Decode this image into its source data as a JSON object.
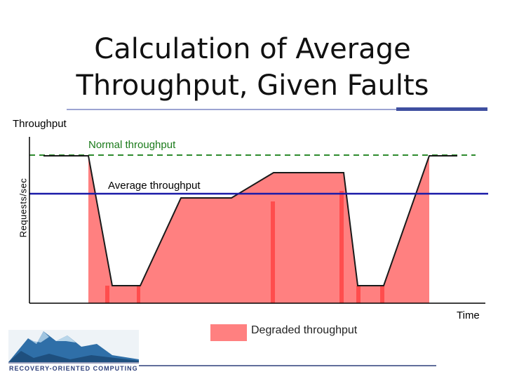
{
  "title": {
    "line1": "Calculation of Average",
    "line2": "Throughput, Given Faults"
  },
  "diagram": {
    "top_label": "Throughput",
    "y_axis_label": "Requests/sec",
    "x_axis_label": "Time",
    "normal_label": "Normal throughput",
    "average_label": "Average throughput",
    "legend_label": "Degraded throughput",
    "colors": {
      "normal_line": "#2e8b2e",
      "average_line": "#1a1aa8",
      "degraded_fill": "#ff8080",
      "degraded_bars": "#ff4d4d",
      "header_rule": "#3f4fa0"
    }
  },
  "logo": {
    "text": "RECOVERY-ORIENTED COMPUTING"
  }
}
